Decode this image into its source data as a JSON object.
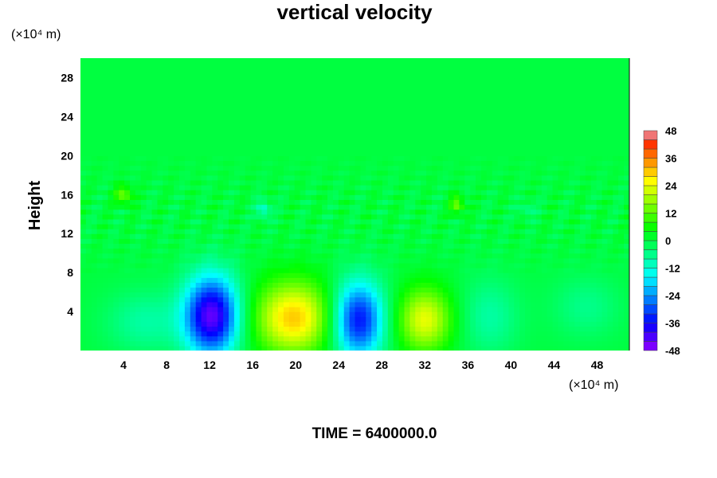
{
  "chart_data": {
    "type": "heatmap",
    "title": "vertical velocity",
    "ylabel": "Height",
    "x_unit": "(×10⁴ m)",
    "y_unit": "(×10⁴ m)",
    "xlim": [
      0,
      51
    ],
    "ylim": [
      0,
      30
    ],
    "x_ticks": [
      4,
      8,
      12,
      16,
      20,
      24,
      28,
      32,
      36,
      40,
      44,
      48
    ],
    "y_ticks": [
      4,
      8,
      12,
      16,
      20,
      24,
      28
    ],
    "colorbar": {
      "min": -48,
      "max": 48,
      "step": 4,
      "ticks": [
        48,
        36,
        24,
        12,
        0,
        -12,
        -24,
        -36,
        -48
      ]
    },
    "background_value": 0,
    "features": [
      {
        "kind": "downdraft",
        "x": 12.2,
        "y": 3.6,
        "peak": -44,
        "rx": 3.2,
        "ry": 5.2
      },
      {
        "kind": "updraft",
        "x": 19.8,
        "y": 3.4,
        "peak": 30,
        "rx": 4.6,
        "ry": 4.8
      },
      {
        "kind": "downdraft",
        "x": 25.8,
        "y": 3.2,
        "peak": -36,
        "rx": 3.0,
        "ry": 5.0
      },
      {
        "kind": "updraft",
        "x": 32.0,
        "y": 3.2,
        "peak": 24,
        "rx": 3.2,
        "ry": 4.2
      },
      {
        "kind": "downdraft",
        "x": 6.0,
        "y": 3.0,
        "peak": -8,
        "rx": 4.5,
        "ry": 4.0
      },
      {
        "kind": "downdraft",
        "x": 38.0,
        "y": 3.5,
        "peak": -8,
        "rx": 3.5,
        "ry": 5.0
      },
      {
        "kind": "downdraft",
        "x": 47.0,
        "y": 4.5,
        "peak": -6,
        "rx": 4.0,
        "ry": 4.0
      },
      {
        "kind": "updraft",
        "x": 4.0,
        "y": 16.0,
        "peak": 14,
        "rx": 1.0,
        "ry": 1.2
      },
      {
        "kind": "updraft",
        "x": 35.0,
        "y": 15.0,
        "peak": 14,
        "rx": 0.8,
        "ry": 1.2
      },
      {
        "kind": "downdraft",
        "x": 17.0,
        "y": 14.5,
        "peak": -12,
        "rx": 0.8,
        "ry": 1.2
      },
      {
        "kind": "downdraft",
        "x": 41.5,
        "y": 14.5,
        "peak": -6,
        "rx": 1.0,
        "ry": 1.0
      }
    ],
    "time_label": "TIME = 6400000.0"
  }
}
